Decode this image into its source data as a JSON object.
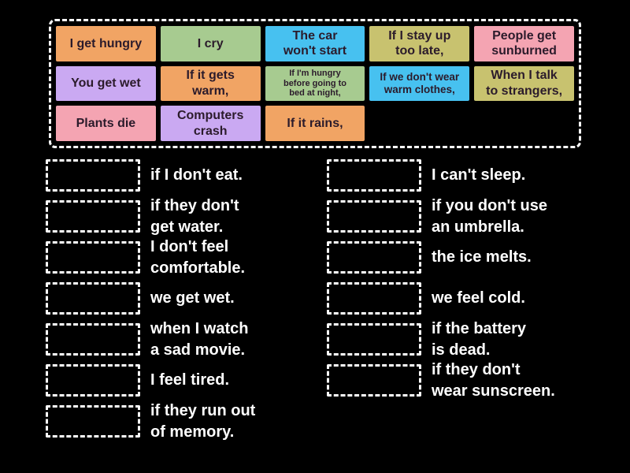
{
  "theme": {
    "background": "#000000",
    "dash_border": "#ffffff",
    "tile_text": "#2b1b2b",
    "answer_text": "#ffffff",
    "palette": {
      "orange": "#f1a464",
      "green": "#a7cb90",
      "blue": "#47c1f0",
      "khaki": "#c8c26f",
      "pink": "#f4a4b2",
      "purple": "#caa9f2"
    }
  },
  "bank": {
    "tiles": [
      {
        "label": "I get hungry",
        "color": "#f1a464"
      },
      {
        "label": "I cry",
        "color": "#a7cb90"
      },
      {
        "label": "The car\nwon't start",
        "color": "#47c1f0"
      },
      {
        "label": "If I stay up\ntoo late,",
        "color": "#c8c26f"
      },
      {
        "label": "People get\nsunburned",
        "color": "#f4a4b2"
      },
      {
        "label": "You get wet",
        "color": "#caa9f2"
      },
      {
        "label": "If it gets\nwarm,",
        "color": "#f1a464"
      },
      {
        "label": "If I'm hungry\nbefore going to\nbed at night,",
        "color": "#a7cb90"
      },
      {
        "label": "If we don't wear\nwarm clothes,",
        "color": "#47c1f0"
      },
      {
        "label": "When I talk\nto strangers,",
        "color": "#c8c26f"
      },
      {
        "label": "Plants die",
        "color": "#f4a4b2"
      },
      {
        "label": "Computers\ncrash",
        "color": "#caa9f2"
      },
      {
        "label": "If it rains,",
        "color": "#f1a464"
      }
    ]
  },
  "matches": {
    "left": [
      {
        "text": "if I don't eat."
      },
      {
        "text": "if they don't\nget water."
      },
      {
        "text": "I don't feel\ncomfortable."
      },
      {
        "text": "we get wet."
      },
      {
        "text": "when I watch\na sad movie."
      },
      {
        "text": "I feel tired."
      },
      {
        "text": "if they run out\nof memory."
      }
    ],
    "right": [
      {
        "text": "I can't sleep."
      },
      {
        "text": "if you don't use\nan umbrella."
      },
      {
        "text": "the ice melts."
      },
      {
        "text": "we feel cold."
      },
      {
        "text": "if the battery\nis dead."
      },
      {
        "text": "if they don't\nwear sunscreen."
      }
    ]
  }
}
